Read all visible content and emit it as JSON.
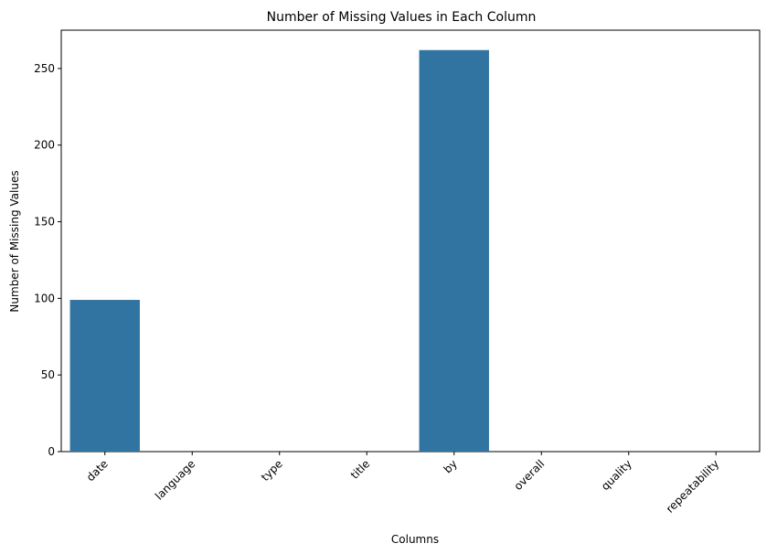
{
  "chart_data": {
    "type": "bar",
    "title": "Number of Missing Values in Each Column",
    "xlabel": "Columns",
    "ylabel": "Number of Missing Values",
    "categories": [
      "date",
      "language",
      "type",
      "title",
      "by",
      "overall",
      "quality",
      "repeatability"
    ],
    "values": [
      99,
      0,
      0,
      0,
      262,
      0,
      0,
      0
    ],
    "ylim": [
      0,
      275
    ],
    "yticks": [
      0,
      50,
      100,
      150,
      200,
      250
    ],
    "xtick_rotation": 45,
    "grid": false,
    "legend": "none",
    "bar_color": "#3274a1"
  }
}
